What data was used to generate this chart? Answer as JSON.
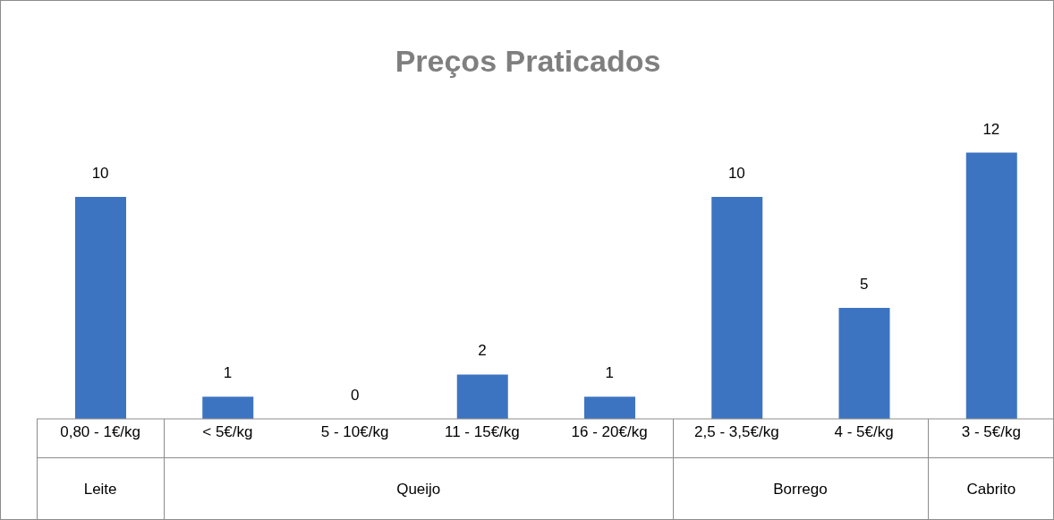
{
  "chart_data": {
    "type": "bar",
    "title": "Preços Praticados",
    "categories": [
      "0,80 - 1€/kg",
      "< 5€/kg",
      "5 - 10€/kg",
      "11 - 15€/kg",
      "16 - 20€/kg",
      "2,5 - 3,5€/kg",
      "4 - 5€/kg",
      "3 - 5€/kg"
    ],
    "values": [
      10,
      1,
      0,
      2,
      1,
      10,
      5,
      12
    ],
    "color": "#3d74c2",
    "data_labels": true,
    "annotations": [
      "Leite",
      "Queijo",
      "Borrego",
      "Cabrito"
    ]
  }
}
